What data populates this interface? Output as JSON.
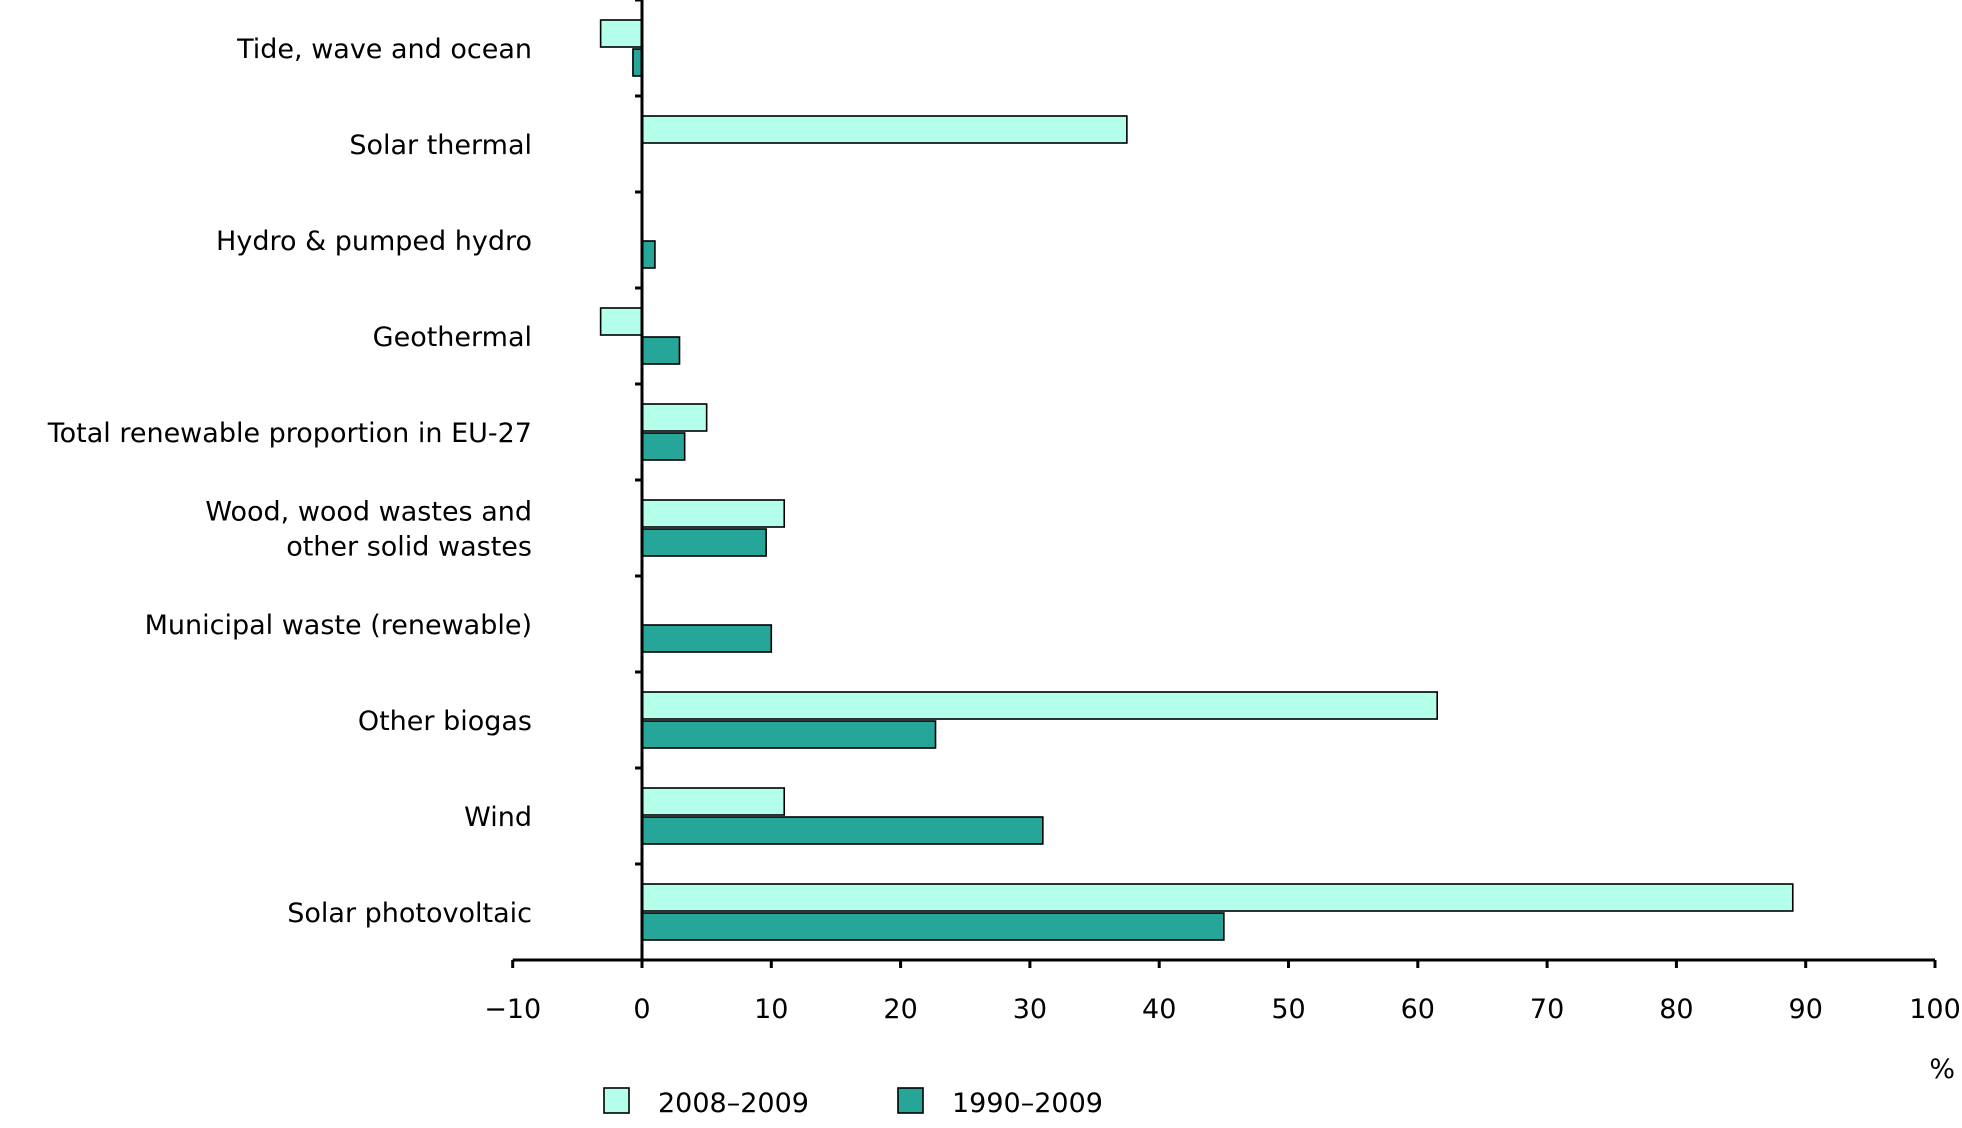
{
  "chart_data": {
    "type": "bar",
    "orientation": "horizontal",
    "categories": [
      "Tide, wave and ocean",
      "Solar thermal",
      "Hydro & pumped hydro",
      "Geothermal",
      "Total renewable proportion in EU-27",
      "Wood, wood wastes and other solid wastes",
      "Municipal waste (renewable)",
      "Other biogas",
      "Wind",
      "Solar photovoltaic"
    ],
    "category_lines": [
      [
        "Tide, wave and ocean"
      ],
      [
        "Solar thermal"
      ],
      [
        "Hydro & pumped hydro"
      ],
      [
        "Geothermal"
      ],
      [
        "Total renewable proportion in EU-27"
      ],
      [
        "Wood, wood wastes and",
        "other solid wastes"
      ],
      [
        "Municipal waste (renewable)"
      ],
      [
        "Other biogas"
      ],
      [
        "Wind"
      ],
      [
        "Solar photovoltaic"
      ]
    ],
    "series": [
      {
        "name": "2008–2009",
        "color": "#b3ffea",
        "values": [
          -3.2,
          37.5,
          0,
          -3.2,
          5.0,
          11.0,
          0,
          61.5,
          11.0,
          89.0
        ]
      },
      {
        "name": "1990–2009",
        "color": "#26a699",
        "values": [
          -0.7,
          0,
          1.0,
          2.9,
          3.3,
          9.6,
          10.0,
          22.7,
          31.0,
          45.0
        ]
      }
    ],
    "xlim": [
      -10,
      100
    ],
    "xticks": [
      "−10",
      "0",
      "10",
      "20",
      "30",
      "40",
      "50",
      "60",
      "70",
      "80",
      "90",
      "100"
    ],
    "xlabel": "%",
    "legend_position": "bottom",
    "grid": false
  }
}
